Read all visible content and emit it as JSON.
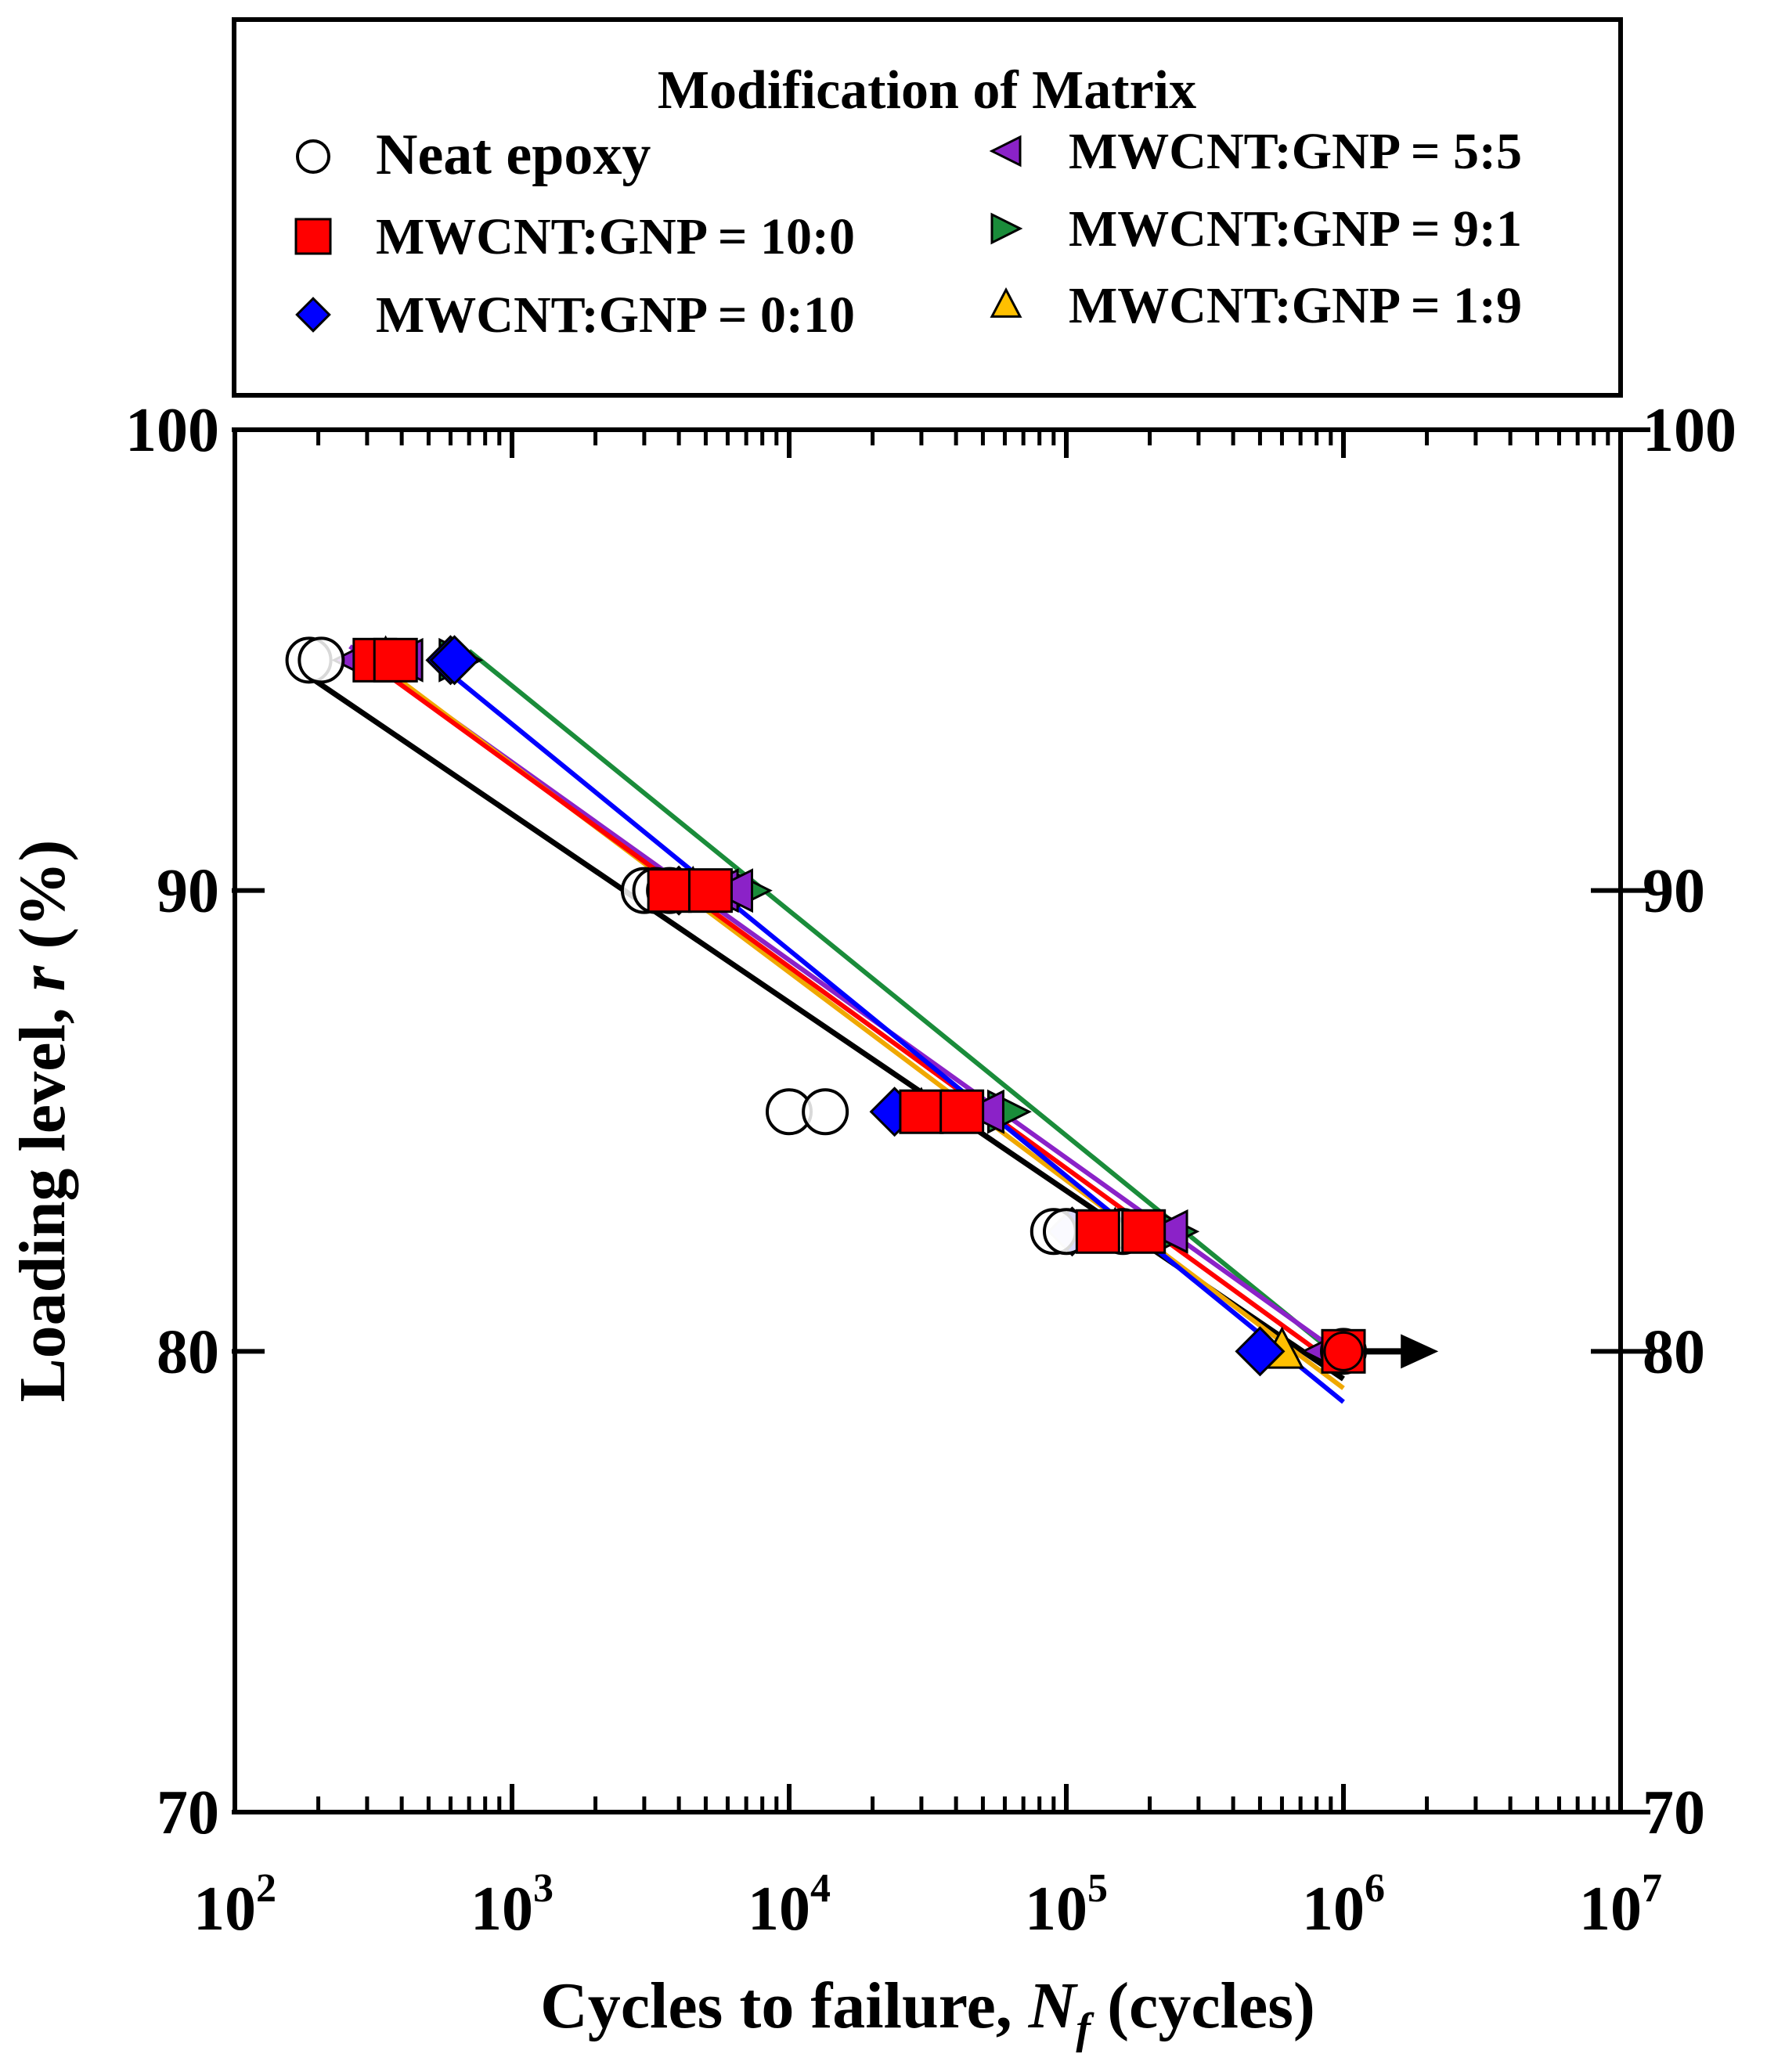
{
  "chart_data": {
    "type": "scatter",
    "title": "",
    "xlabel": {
      "prefix": "Cycles to failure, ",
      "symbol": "N",
      "subscript": "f",
      "suffix": " (cycles)"
    },
    "ylabel": {
      "prefix": "Loading level, ",
      "symbol": "r",
      "suffix": " (%)"
    },
    "x_scale": "log",
    "xlim": [
      100,
      10000000
    ],
    "ylim": [
      70,
      100
    ],
    "x_ticks": [
      {
        "base": "10",
        "exp": "2"
      },
      {
        "base": "10",
        "exp": "3"
      },
      {
        "base": "10",
        "exp": "4"
      },
      {
        "base": "10",
        "exp": "5"
      },
      {
        "base": "10",
        "exp": "6"
      },
      {
        "base": "10",
        "exp": "7"
      }
    ],
    "y_ticks": [
      "70",
      "80",
      "90",
      "100"
    ],
    "y_ticks_right": [
      "70",
      "80",
      "90",
      "100"
    ],
    "legend": {
      "title": "Modification of Matrix",
      "placement": "top (above plot)"
    },
    "runout_arrow": {
      "from": [
        1000000,
        80
      ],
      "to": [
        2200000,
        80
      ],
      "color": "#000000"
    },
    "series": [
      {
        "name": "Neat epoxy",
        "marker": "circle",
        "color": "#000000",
        "fill": "#ffffff",
        "points": [
          [
            185,
            95
          ],
          [
            205,
            95
          ],
          [
            3000,
            90
          ],
          [
            3300,
            90
          ],
          [
            3700,
            90
          ],
          [
            10000,
            85.2
          ],
          [
            13500,
            85.2
          ],
          [
            90000,
            82.6
          ],
          [
            100000,
            82.6
          ],
          [
            160000,
            82.6
          ],
          [
            1000000,
            80
          ]
        ],
        "fit": [
          [
            190,
            94.6
          ],
          [
            1000000,
            79.4
          ]
        ]
      },
      {
        "name": "MWCNT:GNP = 10:0",
        "marker": "square",
        "color": "#ff0000",
        "fill": "#ff0000",
        "points": [
          [
            320,
            95
          ],
          [
            380,
            95
          ],
          [
            3700,
            90
          ],
          [
            5200,
            90
          ],
          [
            30000,
            85.2
          ],
          [
            42000,
            85.2
          ],
          [
            130000,
            82.6
          ],
          [
            190000,
            82.6
          ],
          [
            1000000,
            80
          ]
        ],
        "fit": [
          [
            300,
            95
          ],
          [
            1000000,
            79.6
          ]
        ]
      },
      {
        "name": "MWCNT:GNP = 0:10",
        "marker": "diamond",
        "color": "#0000ff",
        "fill": "#0000ff",
        "points": [
          [
            600,
            95
          ],
          [
            620,
            95
          ],
          [
            4000,
            90
          ],
          [
            24000,
            85.2
          ],
          [
            105000,
            82.6
          ],
          [
            500000,
            80
          ]
        ],
        "fit": [
          [
            600,
            94.7
          ],
          [
            1000000,
            78.9
          ]
        ]
      },
      {
        "name": "MWCNT:GNP = 5:5",
        "marker": "triangle-left",
        "color": "#8b22c8",
        "fill": "#8b22c8",
        "points": [
          [
            270,
            95
          ],
          [
            400,
            95
          ],
          [
            5500,
            90
          ],
          [
            6200,
            90
          ],
          [
            50000,
            85.2
          ],
          [
            230000,
            82.6
          ],
          [
            850000,
            80
          ]
        ],
        "fit": [
          [
            260,
            95.3
          ],
          [
            1000000,
            79.9
          ]
        ]
      },
      {
        "name": "MWCNT:GNP = 9:1",
        "marker": "triangle-right",
        "color": "#1a8c3a",
        "fill": "#1a8c3a",
        "points": [
          [
            650,
            95
          ],
          [
            7200,
            90
          ],
          [
            62000,
            85.2
          ],
          [
            250000,
            82.6
          ]
        ],
        "fit": [
          [
            700,
            95.2
          ],
          [
            1000000,
            79.8
          ]
        ]
      },
      {
        "name": "MWCNT:GNP = 1:9",
        "marker": "triangle-up",
        "color": "#f0a800",
        "fill": "#ffc000",
        "points": [
          [
            350,
            95
          ],
          [
            4500,
            90
          ],
          [
            30000,
            85.2
          ],
          [
            150000,
            82.6
          ],
          [
            600000,
            80
          ]
        ],
        "fit": [
          [
            300,
            95.1
          ],
          [
            1000000,
            79.2
          ]
        ]
      }
    ]
  }
}
